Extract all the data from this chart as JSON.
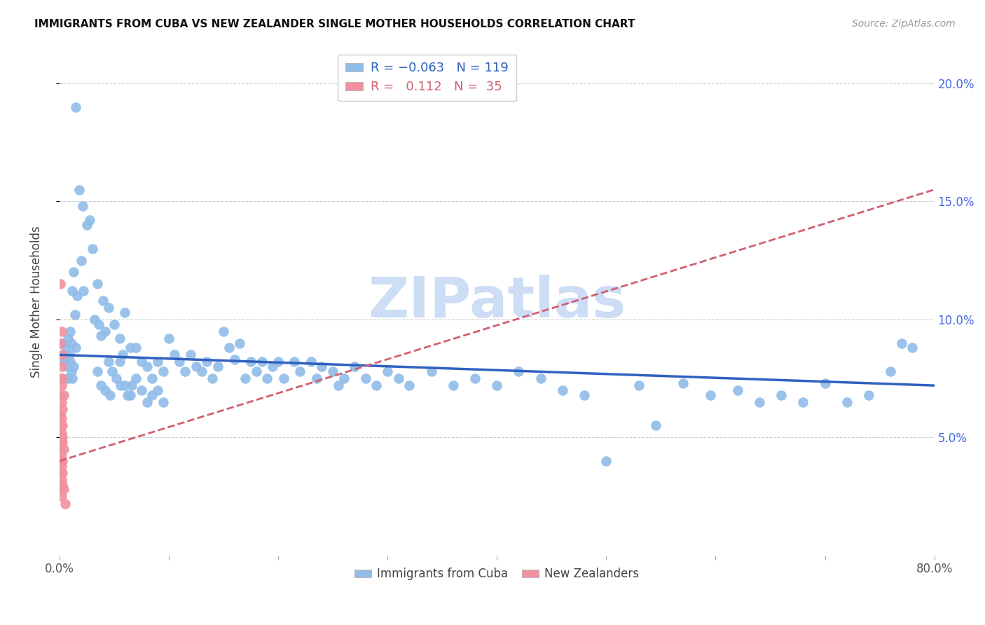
{
  "title": "IMMIGRANTS FROM CUBA VS NEW ZEALANDER SINGLE MOTHER HOUSEHOLDS CORRELATION CHART",
  "source": "Source: ZipAtlas.com",
  "ylabel": "Single Mother Households",
  "xlim": [
    0.0,
    0.8
  ],
  "ylim": [
    0.0,
    0.215
  ],
  "yticks": [
    0.05,
    0.1,
    0.15,
    0.2
  ],
  "xticks": [
    0.0,
    0.1,
    0.2,
    0.3,
    0.4,
    0.5,
    0.6,
    0.7,
    0.8
  ],
  "cuba_color": "#90bce8",
  "nz_color": "#f090a0",
  "cuba_line_color": "#3060c0",
  "nz_line_color": "#d06070",
  "watermark": "ZIPatlas",
  "watermark_color": "#ccddf5",
  "cuba_points": [
    [
      0.015,
      0.19
    ],
    [
      0.018,
      0.155
    ],
    [
      0.021,
      0.148
    ],
    [
      0.025,
      0.14
    ],
    [
      0.03,
      0.13
    ],
    [
      0.028,
      0.142
    ],
    [
      0.013,
      0.12
    ],
    [
      0.016,
      0.11
    ],
    [
      0.035,
      0.115
    ],
    [
      0.04,
      0.108
    ],
    [
      0.012,
      0.112
    ],
    [
      0.014,
      0.102
    ],
    [
      0.01,
      0.095
    ],
    [
      0.011,
      0.09
    ],
    [
      0.015,
      0.088
    ],
    [
      0.02,
      0.125
    ],
    [
      0.022,
      0.112
    ],
    [
      0.008,
      0.092
    ],
    [
      0.009,
      0.085
    ],
    [
      0.045,
      0.105
    ],
    [
      0.05,
      0.098
    ],
    [
      0.055,
      0.092
    ],
    [
      0.06,
      0.103
    ],
    [
      0.065,
      0.088
    ],
    [
      0.045,
      0.082
    ],
    [
      0.048,
      0.078
    ],
    [
      0.042,
      0.095
    ],
    [
      0.038,
      0.093
    ],
    [
      0.032,
      0.1
    ],
    [
      0.036,
      0.098
    ],
    [
      0.055,
      0.082
    ],
    [
      0.058,
      0.085
    ],
    [
      0.07,
      0.088
    ],
    [
      0.075,
      0.082
    ],
    [
      0.08,
      0.08
    ],
    [
      0.085,
      0.075
    ],
    [
      0.09,
      0.082
    ],
    [
      0.095,
      0.078
    ],
    [
      0.1,
      0.092
    ],
    [
      0.105,
      0.085
    ],
    [
      0.11,
      0.082
    ],
    [
      0.115,
      0.078
    ],
    [
      0.12,
      0.085
    ],
    [
      0.125,
      0.08
    ],
    [
      0.13,
      0.078
    ],
    [
      0.135,
      0.082
    ],
    [
      0.14,
      0.075
    ],
    [
      0.145,
      0.08
    ],
    [
      0.005,
      0.082
    ],
    [
      0.006,
      0.088
    ],
    [
      0.007,
      0.08
    ],
    [
      0.008,
      0.075
    ],
    [
      0.003,
      0.09
    ],
    [
      0.004,
      0.085
    ],
    [
      0.002,
      0.083
    ],
    [
      0.01,
      0.082
    ],
    [
      0.011,
      0.078
    ],
    [
      0.012,
      0.075
    ],
    [
      0.013,
      0.08
    ],
    [
      0.15,
      0.095
    ],
    [
      0.155,
      0.088
    ],
    [
      0.16,
      0.083
    ],
    [
      0.165,
      0.09
    ],
    [
      0.17,
      0.075
    ],
    [
      0.175,
      0.082
    ],
    [
      0.18,
      0.078
    ],
    [
      0.185,
      0.082
    ],
    [
      0.19,
      0.075
    ],
    [
      0.195,
      0.08
    ],
    [
      0.2,
      0.082
    ],
    [
      0.205,
      0.075
    ],
    [
      0.215,
      0.082
    ],
    [
      0.22,
      0.078
    ],
    [
      0.23,
      0.082
    ],
    [
      0.235,
      0.075
    ],
    [
      0.24,
      0.08
    ],
    [
      0.25,
      0.078
    ],
    [
      0.255,
      0.072
    ],
    [
      0.26,
      0.075
    ],
    [
      0.27,
      0.08
    ],
    [
      0.28,
      0.075
    ],
    [
      0.29,
      0.072
    ],
    [
      0.3,
      0.078
    ],
    [
      0.31,
      0.075
    ],
    [
      0.32,
      0.072
    ],
    [
      0.34,
      0.078
    ],
    [
      0.36,
      0.072
    ],
    [
      0.38,
      0.075
    ],
    [
      0.4,
      0.072
    ],
    [
      0.42,
      0.078
    ],
    [
      0.44,
      0.075
    ],
    [
      0.46,
      0.07
    ],
    [
      0.48,
      0.068
    ],
    [
      0.5,
      0.04
    ],
    [
      0.53,
      0.072
    ],
    [
      0.545,
      0.055
    ],
    [
      0.57,
      0.073
    ],
    [
      0.595,
      0.068
    ],
    [
      0.62,
      0.07
    ],
    [
      0.64,
      0.065
    ],
    [
      0.66,
      0.068
    ],
    [
      0.68,
      0.065
    ],
    [
      0.7,
      0.073
    ],
    [
      0.72,
      0.065
    ],
    [
      0.74,
      0.068
    ],
    [
      0.76,
      0.078
    ],
    [
      0.77,
      0.09
    ],
    [
      0.78,
      0.088
    ],
    [
      0.06,
      0.072
    ],
    [
      0.065,
      0.068
    ],
    [
      0.07,
      0.075
    ],
    [
      0.075,
      0.07
    ],
    [
      0.08,
      0.065
    ],
    [
      0.085,
      0.068
    ],
    [
      0.09,
      0.07
    ],
    [
      0.095,
      0.065
    ],
    [
      0.035,
      0.078
    ],
    [
      0.038,
      0.072
    ],
    [
      0.042,
      0.07
    ],
    [
      0.046,
      0.068
    ],
    [
      0.052,
      0.075
    ],
    [
      0.056,
      0.072
    ],
    [
      0.062,
      0.068
    ],
    [
      0.066,
      0.072
    ]
  ],
  "nz_points": [
    [
      0.001,
      0.115
    ],
    [
      0.002,
      0.095
    ],
    [
      0.001,
      0.09
    ],
    [
      0.003,
      0.085
    ],
    [
      0.002,
      0.08
    ],
    [
      0.001,
      0.075
    ],
    [
      0.002,
      0.072
    ],
    [
      0.003,
      0.075
    ],
    [
      0.004,
      0.068
    ],
    [
      0.001,
      0.068
    ],
    [
      0.002,
      0.065
    ],
    [
      0.003,
      0.062
    ],
    [
      0.001,
      0.06
    ],
    [
      0.002,
      0.058
    ],
    [
      0.003,
      0.055
    ],
    [
      0.001,
      0.055
    ],
    [
      0.002,
      0.052
    ],
    [
      0.003,
      0.05
    ],
    [
      0.001,
      0.05
    ],
    [
      0.002,
      0.048
    ],
    [
      0.003,
      0.048
    ],
    [
      0.001,
      0.045
    ],
    [
      0.002,
      0.042
    ],
    [
      0.003,
      0.04
    ],
    [
      0.004,
      0.045
    ],
    [
      0.001,
      0.04
    ],
    [
      0.002,
      0.038
    ],
    [
      0.003,
      0.035
    ],
    [
      0.001,
      0.035
    ],
    [
      0.002,
      0.032
    ],
    [
      0.003,
      0.03
    ],
    [
      0.001,
      0.028
    ],
    [
      0.002,
      0.025
    ],
    [
      0.004,
      0.028
    ],
    [
      0.005,
      0.022
    ]
  ],
  "cuba_line_x": [
    0.0,
    0.8
  ],
  "cuba_line_y": [
    0.085,
    0.072
  ],
  "nz_line_x": [
    0.0,
    0.8
  ],
  "nz_line_y": [
    0.04,
    0.155
  ]
}
